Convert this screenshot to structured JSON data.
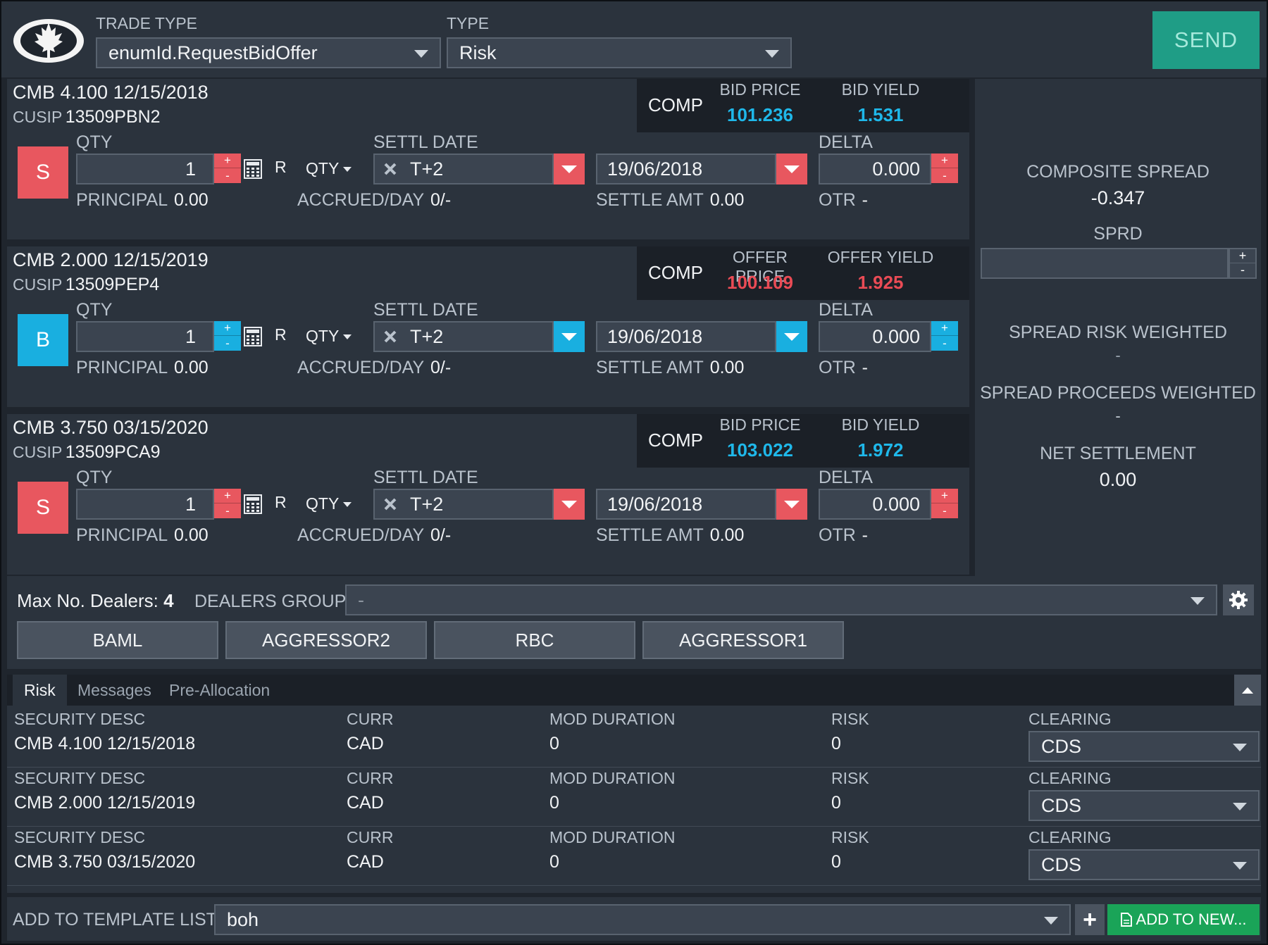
{
  "header": {
    "trade_type_label": "TRADE TYPE",
    "trade_type_value": "enumId.RequestBidOffer",
    "type_label": "TYPE",
    "type_value": "Risk",
    "send_label": "SEND",
    "logo_icon": "maple-leaf-icon"
  },
  "legs": [
    {
      "security": "CMB 4.100 12/15/2018",
      "cusip_label": "CUSIP",
      "cusip": "13509PBN2",
      "comp_label": "COMP",
      "price_label": "BID PRICE",
      "price": "101.236",
      "yield_label": "BID YIELD",
      "yield": "1.531",
      "price_color": "#1fb8ea",
      "side": "S",
      "side_color": "#e8575f",
      "qty_label": "QTY",
      "qty": "1",
      "r_label": "R",
      "qty_mode": "QTY",
      "settl_label": "SETTL DATE",
      "settl": "T+2",
      "date": "19/06/2018",
      "delta_label": "DELTA",
      "delta": "0.000",
      "principal_label": "PRINCIPAL",
      "principal": "0.00",
      "accrued_label": "ACCRUED/DAY",
      "accrued": "0/-",
      "settle_amt_label": "SETTLE AMT",
      "settle_amt": "0.00",
      "otr_label": "OTR",
      "otr": "-"
    },
    {
      "security": "CMB 2.000 12/15/2019",
      "cusip_label": "CUSIP",
      "cusip": "13509PEP4",
      "comp_label": "COMP",
      "price_label": "OFFER PRICE",
      "price": "100.109",
      "yield_label": "OFFER YIELD",
      "yield": "1.925",
      "price_color": "#ea4b55",
      "side": "B",
      "side_color": "#19afe0",
      "qty_label": "QTY",
      "qty": "1",
      "r_label": "R",
      "qty_mode": "QTY",
      "settl_label": "SETTL DATE",
      "settl": "T+2",
      "date": "19/06/2018",
      "delta_label": "DELTA",
      "delta": "0.000",
      "principal_label": "PRINCIPAL",
      "principal": "0.00",
      "accrued_label": "ACCRUED/DAY",
      "accrued": "0/-",
      "settle_amt_label": "SETTLE AMT",
      "settle_amt": "0.00",
      "otr_label": "OTR",
      "otr": "-"
    },
    {
      "security": "CMB 3.750 03/15/2020",
      "cusip_label": "CUSIP",
      "cusip": "13509PCA9",
      "comp_label": "COMP",
      "price_label": "BID PRICE",
      "price": "103.022",
      "yield_label": "BID YIELD",
      "yield": "1.972",
      "price_color": "#1fb8ea",
      "side": "S",
      "side_color": "#e8575f",
      "qty_label": "QTY",
      "qty": "1",
      "r_label": "R",
      "qty_mode": "QTY",
      "settl_label": "SETTL DATE",
      "settl": "T+2",
      "date": "19/06/2018",
      "delta_label": "DELTA",
      "delta": "0.000",
      "principal_label": "PRINCIPAL",
      "principal": "0.00",
      "accrued_label": "ACCRUED/DAY",
      "accrued": "0/-",
      "settle_amt_label": "SETTLE AMT",
      "settle_amt": "0.00",
      "otr_label": "OTR",
      "otr": "-"
    }
  ],
  "right_panel": {
    "composite_spread_label": "COMPOSITE SPREAD",
    "composite_spread": "-0.347",
    "sprd_label": "SPRD",
    "sprd_value": "",
    "spread_risk_label": "SPREAD RISK WEIGHTED",
    "spread_risk": "-",
    "spread_proceeds_label": "SPREAD PROCEEDS WEIGHTED",
    "spread_proceeds": "-",
    "net_settlement_label": "NET SETTLEMENT",
    "net_settlement": "0.00"
  },
  "dealers": {
    "max_label": "Max No. Dealers:",
    "max_value": "4",
    "group_label": "DEALERS GROUP",
    "group_value": "-",
    "list": [
      "BAML",
      "AGGRESSOR2",
      "RBC",
      "AGGRESSOR1"
    ]
  },
  "tabs": {
    "items": [
      "Risk",
      "Messages",
      "Pre-Allocation"
    ],
    "active": "Risk"
  },
  "risk_table": {
    "headers": {
      "security_desc": "SECURITY DESC",
      "curr": "CURR",
      "mod_duration": "MOD DURATION",
      "risk": "RISK",
      "clearing": "CLEARING"
    },
    "rows": [
      {
        "security_desc": "CMB 4.100 12/15/2018",
        "curr": "CAD",
        "mod_duration": "0",
        "risk": "0",
        "clearing": "CDS"
      },
      {
        "security_desc": "CMB 2.000 12/15/2019",
        "curr": "CAD",
        "mod_duration": "0",
        "risk": "0",
        "clearing": "CDS"
      },
      {
        "security_desc": "CMB 3.750 03/15/2020",
        "curr": "CAD",
        "mod_duration": "0",
        "risk": "0",
        "clearing": "CDS"
      }
    ]
  },
  "footer": {
    "template_label": "ADD TO TEMPLATE LIST",
    "template_value": "boh",
    "add_new_label": "ADD TO NEW..."
  },
  "colors": {
    "sell": "#e8575f",
    "buy": "#19afe0",
    "send": "#1f9d86",
    "add_new": "#1aa458"
  }
}
